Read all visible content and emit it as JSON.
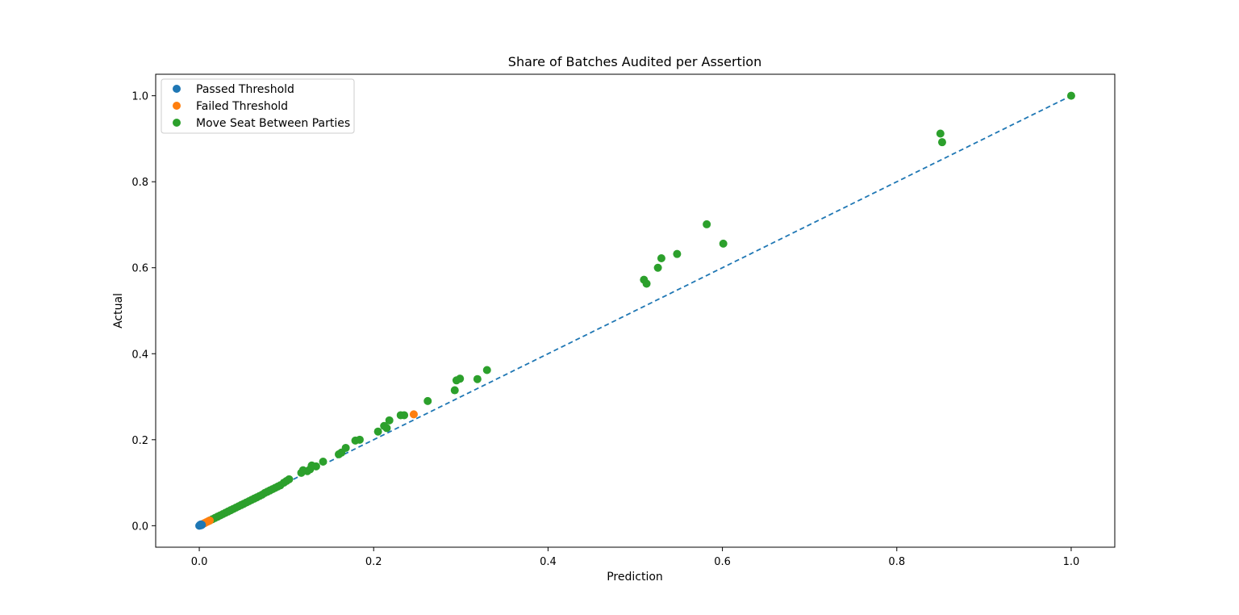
{
  "chart_data": {
    "type": "scatter",
    "title": "Share of Batches Audited per Assertion",
    "xlabel": "Prediction",
    "ylabel": "Actual",
    "xlim": [
      -0.05,
      1.05
    ],
    "ylim": [
      -0.05,
      1.05
    ],
    "xticks": [
      0.0,
      0.2,
      0.4,
      0.6,
      0.8,
      1.0
    ],
    "yticks": [
      0.0,
      0.2,
      0.4,
      0.6,
      0.8,
      1.0
    ],
    "x_tick_labels": [
      "0.0",
      "0.2",
      "0.4",
      "0.6",
      "0.8",
      "1.0"
    ],
    "y_tick_labels": [
      "0.0",
      "0.2",
      "0.4",
      "0.6",
      "0.8",
      "1.0"
    ],
    "grid": false,
    "legend_position": "top-left",
    "reference_line": {
      "style": "dashed",
      "color": "#1f77b4",
      "points": [
        [
          0.0,
          0.0
        ],
        [
          1.0,
          1.0
        ]
      ]
    },
    "series": [
      {
        "name": "Passed Threshold",
        "color": "#1f77b4",
        "points": [
          [
            0.0,
            0.0
          ],
          [
            0.001,
            0.001
          ],
          [
            0.002,
            0.001
          ],
          [
            0.001,
            0.002
          ],
          [
            0.003,
            0.002
          ],
          [
            0.002,
            0.003
          ]
        ]
      },
      {
        "name": "Failed Threshold",
        "color": "#ff7f0e",
        "points": [
          [
            0.004,
            0.004
          ],
          [
            0.006,
            0.006
          ],
          [
            0.008,
            0.008
          ],
          [
            0.01,
            0.01
          ],
          [
            0.012,
            0.012
          ],
          [
            0.246,
            0.259
          ]
        ]
      },
      {
        "name": "Move Seat Between Parties",
        "color": "#2ca02c",
        "points": [
          [
            0.012,
            0.012
          ],
          [
            0.015,
            0.015
          ],
          [
            0.018,
            0.018
          ],
          [
            0.021,
            0.021
          ],
          [
            0.024,
            0.024
          ],
          [
            0.027,
            0.027
          ],
          [
            0.03,
            0.03
          ],
          [
            0.033,
            0.033
          ],
          [
            0.036,
            0.036
          ],
          [
            0.039,
            0.039
          ],
          [
            0.042,
            0.042
          ],
          [
            0.045,
            0.045
          ],
          [
            0.048,
            0.048
          ],
          [
            0.051,
            0.051
          ],
          [
            0.054,
            0.054
          ],
          [
            0.057,
            0.057
          ],
          [
            0.06,
            0.06
          ],
          [
            0.063,
            0.063
          ],
          [
            0.066,
            0.066
          ],
          [
            0.069,
            0.069
          ],
          [
            0.072,
            0.072
          ],
          [
            0.075,
            0.076
          ],
          [
            0.078,
            0.079
          ],
          [
            0.081,
            0.082
          ],
          [
            0.084,
            0.085
          ],
          [
            0.087,
            0.088
          ],
          [
            0.09,
            0.091
          ],
          [
            0.093,
            0.094
          ],
          [
            0.097,
            0.1
          ],
          [
            0.1,
            0.104
          ],
          [
            0.103,
            0.108
          ],
          [
            0.117,
            0.123
          ],
          [
            0.119,
            0.129
          ],
          [
            0.124,
            0.127
          ],
          [
            0.127,
            0.131
          ],
          [
            0.129,
            0.14
          ],
          [
            0.134,
            0.138
          ],
          [
            0.142,
            0.149
          ],
          [
            0.16,
            0.166
          ],
          [
            0.163,
            0.17
          ],
          [
            0.168,
            0.181
          ],
          [
            0.179,
            0.198
          ],
          [
            0.184,
            0.2
          ],
          [
            0.205,
            0.219
          ],
          [
            0.212,
            0.232
          ],
          [
            0.215,
            0.227
          ],
          [
            0.218,
            0.245
          ],
          [
            0.231,
            0.257
          ],
          [
            0.235,
            0.257
          ],
          [
            0.262,
            0.29
          ],
          [
            0.293,
            0.315
          ],
          [
            0.295,
            0.338
          ],
          [
            0.299,
            0.342
          ],
          [
            0.319,
            0.341
          ],
          [
            0.33,
            0.362
          ],
          [
            0.51,
            0.572
          ],
          [
            0.513,
            0.563
          ],
          [
            0.526,
            0.6
          ],
          [
            0.53,
            0.622
          ],
          [
            0.548,
            0.632
          ],
          [
            0.582,
            0.701
          ],
          [
            0.601,
            0.656
          ],
          [
            0.85,
            0.912
          ],
          [
            0.852,
            0.892
          ],
          [
            1.0,
            1.0
          ]
        ]
      }
    ]
  }
}
